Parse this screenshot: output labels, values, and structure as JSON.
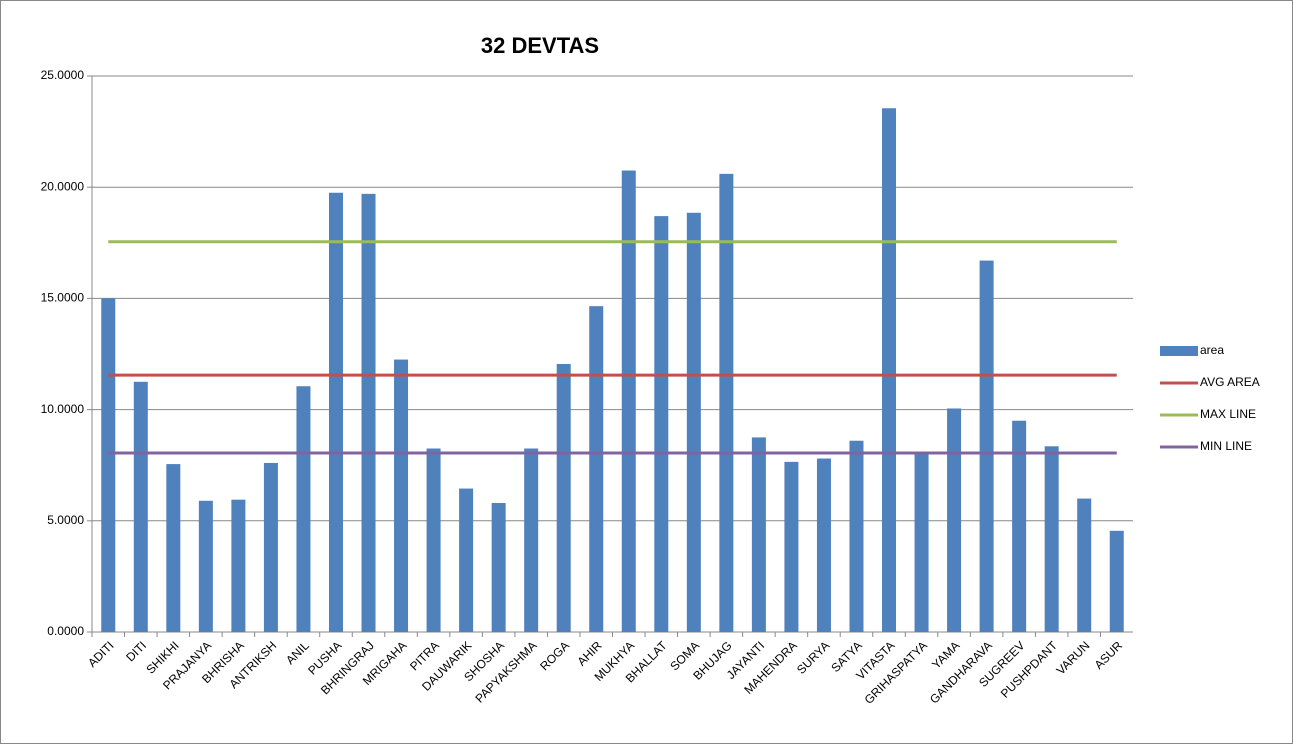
{
  "chart_data": {
    "type": "bar",
    "title": "32 DEVTAS",
    "categories": [
      "ADITI",
      "DITI",
      "SHIKHI",
      "PRAJANYA",
      "BHRISHA",
      "ANTRIKSH",
      "ANIL",
      "PUSHA",
      "BHRINGRAJ",
      "MRIGAHA",
      "PITRA",
      "DAUWARIK",
      "SHOSHA",
      "PAPYAKSHMA",
      "ROGA",
      "AHIR",
      "MUKHYA",
      "BHALLAT",
      "SOMA",
      "BHUJAG",
      "JAYANTI",
      "MAHENDRA",
      "SURYA",
      "SATYA",
      "VITASTA",
      "GRIHASPATYA",
      "YAMA",
      "GANDHARAVA",
      "SUGREEV",
      "PUSHPDANT",
      "VARUN",
      "ASUR"
    ],
    "series": [
      {
        "name": "area",
        "type": "bar",
        "color": "#4f81bd",
        "values": [
          15.0,
          11.25,
          7.55,
          5.9,
          5.95,
          7.6,
          11.05,
          19.75,
          19.7,
          12.25,
          8.25,
          6.45,
          5.8,
          8.25,
          12.05,
          14.65,
          20.75,
          18.7,
          18.85,
          20.6,
          8.75,
          7.65,
          7.8,
          8.6,
          23.55,
          8.05,
          10.05,
          16.7,
          9.5,
          8.35,
          6.0,
          4.55
        ]
      },
      {
        "name": "AVG AREA",
        "type": "line",
        "color": "#c0504d",
        "values": [
          11.55,
          11.55,
          11.55,
          11.55,
          11.55,
          11.55,
          11.55,
          11.55,
          11.55,
          11.55,
          11.55,
          11.55,
          11.55,
          11.55,
          11.55,
          11.55,
          11.55,
          11.55,
          11.55,
          11.55,
          11.55,
          11.55,
          11.55,
          11.55,
          11.55,
          11.55,
          11.55,
          11.55,
          11.55,
          11.55,
          11.55,
          11.55
        ]
      },
      {
        "name": "MAX LINE",
        "type": "line",
        "color": "#9bbb59",
        "values": [
          17.55,
          17.55,
          17.55,
          17.55,
          17.55,
          17.55,
          17.55,
          17.55,
          17.55,
          17.55,
          17.55,
          17.55,
          17.55,
          17.55,
          17.55,
          17.55,
          17.55,
          17.55,
          17.55,
          17.55,
          17.55,
          17.55,
          17.55,
          17.55,
          17.55,
          17.55,
          17.55,
          17.55,
          17.55,
          17.55,
          17.55,
          17.55
        ]
      },
      {
        "name": "MIN LINE",
        "type": "line",
        "color": "#8064a2",
        "values": [
          8.05,
          8.05,
          8.05,
          8.05,
          8.05,
          8.05,
          8.05,
          8.05,
          8.05,
          8.05,
          8.05,
          8.05,
          8.05,
          8.05,
          8.05,
          8.05,
          8.05,
          8.05,
          8.05,
          8.05,
          8.05,
          8.05,
          8.05,
          8.05,
          8.05,
          8.05,
          8.05,
          8.05,
          8.05,
          8.05,
          8.05,
          8.05
        ]
      }
    ],
    "ylim": [
      0,
      25
    ],
    "yticks": [
      {
        "value": 0,
        "label": "0.0000"
      },
      {
        "value": 5,
        "label": "5.0000"
      },
      {
        "value": 10,
        "label": "10.0000"
      },
      {
        "value": 15,
        "label": "15.0000"
      },
      {
        "value": 20,
        "label": "20.0000"
      },
      {
        "value": 25,
        "label": "25.0000"
      }
    ],
    "grid": true,
    "legend": "right"
  }
}
